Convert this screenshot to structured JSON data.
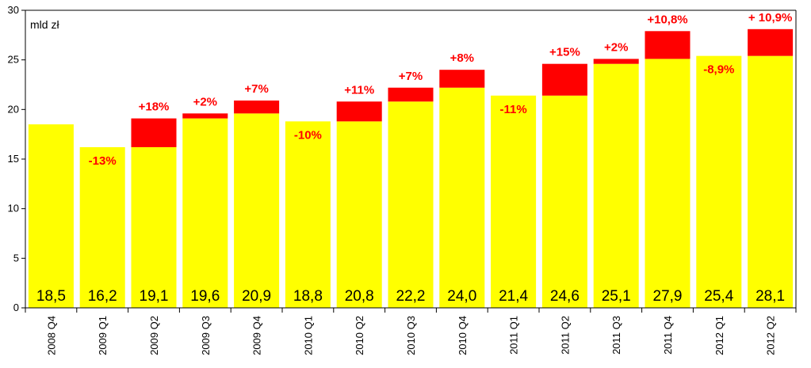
{
  "chart_data": {
    "type": "bar",
    "title": "",
    "unit_label": "mld zł",
    "xlabel": "",
    "ylabel": "",
    "ylim": [
      0,
      30
    ],
    "yticks": [
      0,
      5,
      10,
      15,
      20,
      25,
      30
    ],
    "grid": false,
    "stacked": true,
    "categories": [
      "2008 Q4",
      "2009 Q1",
      "2009 Q2",
      "2009 Q3",
      "2009 Q4",
      "2010 Q1",
      "2010 Q2",
      "2010 Q3",
      "2010 Q4",
      "2011 Q1",
      "2011 Q2",
      "2011 Q3",
      "2011 Q4",
      "2012 Q1",
      "2012 Q2"
    ],
    "values": [
      18.5,
      16.2,
      19.1,
      19.6,
      20.9,
      18.8,
      20.8,
      22.2,
      24.0,
      21.4,
      24.6,
      25.1,
      27.9,
      25.4,
      28.1
    ],
    "value_labels": [
      "18,5",
      "16,2",
      "19,1",
      "19,6",
      "20,9",
      "18,8",
      "20,8",
      "22,2",
      "24,0",
      "21,4",
      "24,6",
      "25,1",
      "27,9",
      "25,4",
      "28,1"
    ],
    "change_labels": [
      "",
      "-13%",
      "+18%",
      "+2%",
      "+7%",
      "-10%",
      "+11%",
      "+7%",
      "+8%",
      "-11%",
      "+15%",
      "+2%",
      "+10,8%",
      "-8,9%",
      "+ 10,9%"
    ],
    "colors": {
      "base": "#ffff00",
      "increase": "#ff0000",
      "change_text": "#ff0000",
      "axis": "#000000"
    }
  }
}
